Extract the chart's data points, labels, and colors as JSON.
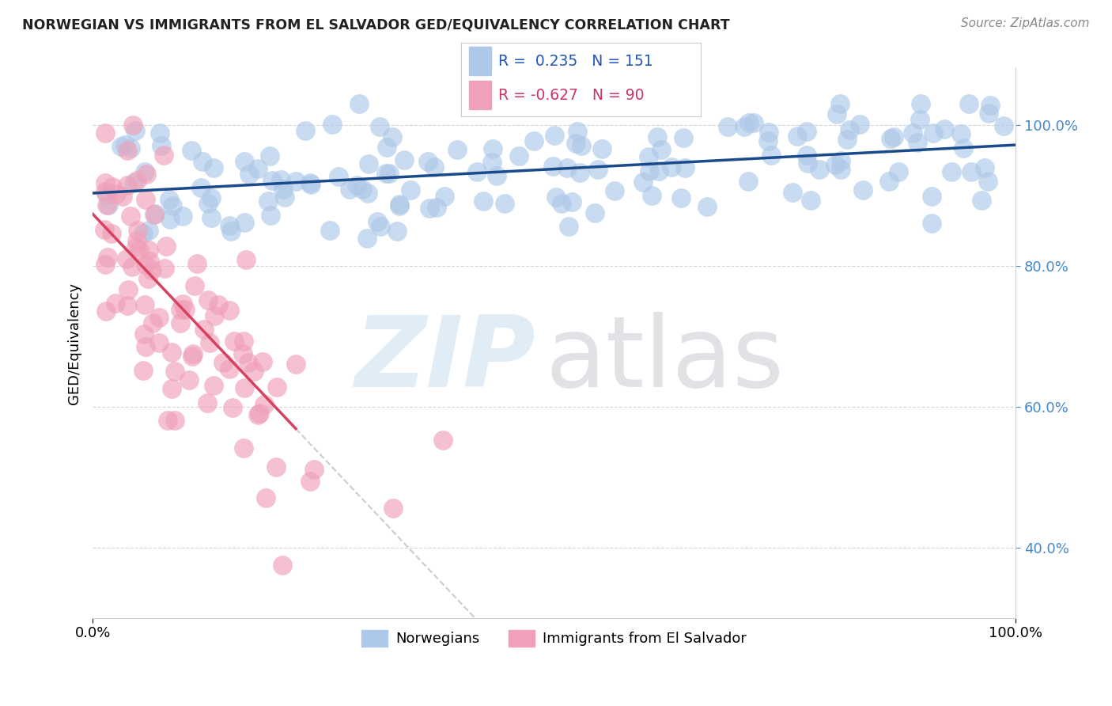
{
  "title": "NORWEGIAN VS IMMIGRANTS FROM EL SALVADOR GED/EQUIVALENCY CORRELATION CHART",
  "source": "Source: ZipAtlas.com",
  "ylabel": "GED/Equivalency",
  "legend_r_blue": "0.235",
  "legend_n_blue": "151",
  "legend_r_pink": "-0.627",
  "legend_n_pink": "90",
  "blue_scatter_color": "#adc8e8",
  "blue_line_color": "#1a4a8a",
  "pink_scatter_color": "#f0a0b8",
  "pink_line_color": "#d84060",
  "dashed_line_color": "#cccccc",
  "watermark_zip_color": "#c8dff0",
  "watermark_atlas_color": "#c0c0c8",
  "background_color": "#ffffff",
  "grid_color": "#cccccc",
  "title_color": "#222222",
  "source_color": "#888888",
  "ytick_color": "#4488cc",
  "legend_text_blue_color": "#2255bb",
  "legend_text_pink_color": "#cc3366",
  "blue_seed": 42,
  "pink_seed": 7,
  "n_blue": 151,
  "n_pink": 90,
  "xlim": [
    0.0,
    1.0
  ],
  "ylim": [
    0.3,
    1.08
  ],
  "ytick_positions": [
    0.4,
    0.6,
    0.8,
    1.0
  ],
  "ytick_labels": [
    "40.0%",
    "60.0%",
    "80.0%",
    "100.0%"
  ]
}
